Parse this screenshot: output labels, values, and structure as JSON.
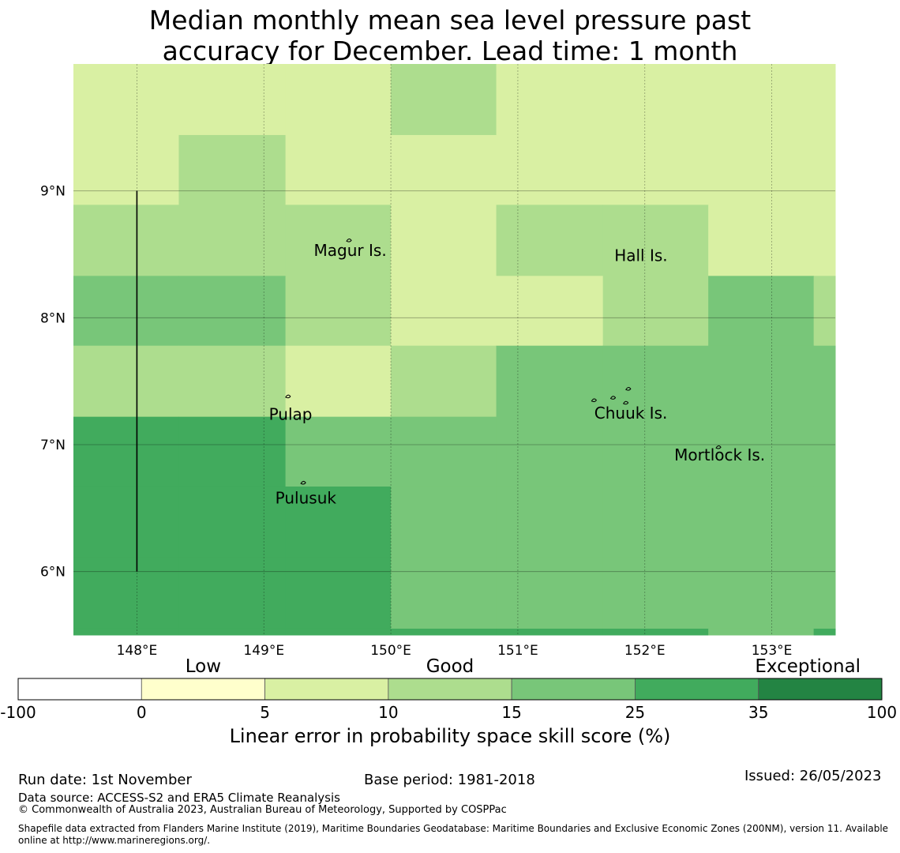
{
  "title": {
    "line1": "Median monthly mean sea level pressure past",
    "line2": "accuracy for December. Lead time: 1 month"
  },
  "map": {
    "lon_range": [
      147.5,
      153.5
    ],
    "lat_range": [
      5.5,
      10.0
    ],
    "lon_ticks": [
      {
        "value": 148,
        "label": "148°E"
      },
      {
        "value": 149,
        "label": "149°E"
      },
      {
        "value": 150,
        "label": "150°E"
      },
      {
        "value": 151,
        "label": "151°E"
      },
      {
        "value": 152,
        "label": "152°E"
      },
      {
        "value": 153,
        "label": "153°E"
      }
    ],
    "lat_ticks": [
      {
        "value": 9,
        "label": "9°N"
      },
      {
        "value": 8,
        "label": "8°N"
      },
      {
        "value": 7,
        "label": "7°N"
      },
      {
        "value": 6,
        "label": "6°N"
      }
    ],
    "grid_lons": [
      147.5,
      148.33,
      149.17,
      150.0,
      150.83,
      151.67,
      152.5,
      153.33,
      153.5
    ],
    "grid_lats": [
      10.0,
      9.44,
      8.89,
      8.33,
      7.78,
      7.22,
      6.67,
      6.11,
      5.55,
      5.5
    ],
    "skill_class_rows": [
      [
        2,
        2,
        2,
        3,
        2,
        2,
        2,
        2
      ],
      [
        2,
        3,
        2,
        2,
        2,
        2,
        2,
        2
      ],
      [
        3,
        3,
        3,
        2,
        3,
        3,
        2,
        2
      ],
      [
        4,
        4,
        3,
        2,
        2,
        3,
        4,
        3
      ],
      [
        3,
        3,
        2,
        3,
        4,
        4,
        4,
        4
      ],
      [
        5,
        5,
        4,
        4,
        4,
        4,
        4,
        4
      ],
      [
        5,
        5,
        5,
        4,
        4,
        4,
        4,
        4
      ],
      [
        5,
        5,
        5,
        4,
        4,
        4,
        4,
        4
      ],
      [
        5,
        5,
        5,
        5,
        5,
        5,
        4,
        5
      ]
    ],
    "boundary_line": {
      "lon": 148.0,
      "lat_from": 6.0,
      "lat_to": 9.0
    },
    "places": [
      {
        "name": "Magur Is.",
        "lon": 149.68,
        "lat": 8.53
      },
      {
        "name": "Hall Is.",
        "lon": 151.97,
        "lat": 8.49
      },
      {
        "name": "Pulap",
        "lon": 149.21,
        "lat": 7.24
      },
      {
        "name": "Chuuk Is.",
        "lon": 151.89,
        "lat": 7.25
      },
      {
        "name": "Mortlock Is.",
        "lon": 152.59,
        "lat": 6.92
      },
      {
        "name": "Pulusuk",
        "lon": 149.33,
        "lat": 6.58
      }
    ],
    "islands": [
      {
        "lon": 149.67,
        "lat": 8.61
      },
      {
        "lon": 149.19,
        "lat": 7.38
      },
      {
        "lon": 149.31,
        "lat": 6.7
      },
      {
        "lon": 151.6,
        "lat": 7.35
      },
      {
        "lon": 151.75,
        "lat": 7.37
      },
      {
        "lon": 151.85,
        "lat": 7.33
      },
      {
        "lon": 151.87,
        "lat": 7.44
      },
      {
        "lon": 152.58,
        "lat": 6.98
      }
    ]
  },
  "colorbar": {
    "categories": [
      {
        "label": "Low",
        "at": 1.5
      },
      {
        "label": "Good",
        "at": 3.5
      },
      {
        "label": "Exceptional",
        "at": 6.4
      }
    ],
    "bins": [
      {
        "from": -100,
        "to": 0,
        "color": "#ffffff"
      },
      {
        "from": 0,
        "to": 5,
        "color": "#ffffcc"
      },
      {
        "from": 5,
        "to": 10,
        "color": "#d9f0a3"
      },
      {
        "from": 10,
        "to": 15,
        "color": "#addd8e"
      },
      {
        "from": 15,
        "to": 25,
        "color": "#78c679"
      },
      {
        "from": 25,
        "to": 35,
        "color": "#41ab5d"
      },
      {
        "from": 35,
        "to": 100,
        "color": "#238443"
      }
    ],
    "tick_labels": [
      "-100",
      "0",
      "5",
      "10",
      "15",
      "25",
      "35",
      "100"
    ],
    "label": "Linear error in probability space skill score (%)"
  },
  "footer": {
    "run_date": "Run date: 1st November",
    "base_period": "Base period: 1981-2018",
    "issued": "Issued: 26/05/2023",
    "data_source": "Data source: ACCESS-S2 and ERA5 Climate Reanalysis",
    "copyright": "© Commonwealth of Australia 2023, Australian Bureau of Meteorology, Supported by COSPPac",
    "shapefile_line1": "Shapefile data extracted from Flanders Marine Institute (2019), Maritime Boundaries Geodatabase: Maritime Boundaries and Exclusive Economic Zones (200NM), version 11. Available",
    "shapefile_line2": "online at http://www.marineregions.org/."
  }
}
